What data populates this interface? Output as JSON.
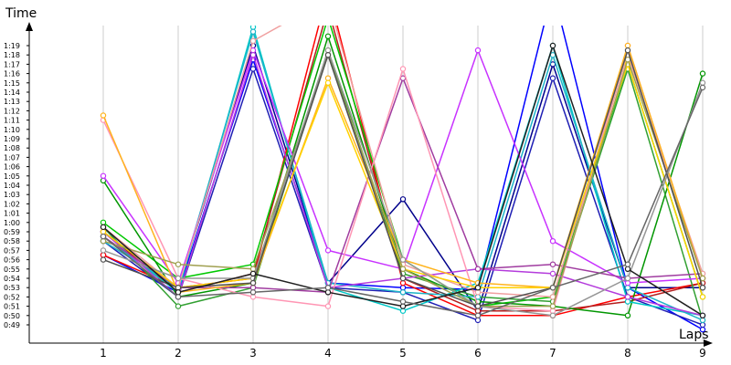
{
  "chart_data": {
    "type": "line",
    "title": "",
    "xlabel": "Laps",
    "ylabel": "Time",
    "x": [
      1,
      2,
      3,
      4,
      5,
      6,
      7,
      8,
      9
    ],
    "ylim": [
      "0:48",
      "1:21"
    ],
    "y_ticks": [
      "0:49",
      "0:50",
      "0:51",
      "0:52",
      "0:53",
      "0:54",
      "0:55",
      "0:56",
      "0:57",
      "0:58",
      "0:59",
      "1:00",
      "1:01",
      "1:02",
      "1:03",
      "1:04",
      "1:05",
      "1:06",
      "1:07",
      "1:08",
      "1:09",
      "1:10",
      "1:11",
      "1:12",
      "1:13",
      "1:14",
      "1:15",
      "1:16",
      "1:17",
      "1:18",
      "1:19"
    ],
    "grid": "vertical",
    "legend": "none",
    "series": [
      {
        "color": "#0000ff",
        "values": [
          "0:56.5",
          "0:52.5",
          "1:17.5",
          "0:53.5",
          "0:53",
          "0:52.8",
          "1:25",
          "0:53",
          "0:48.5"
        ]
      },
      {
        "color": "#1e1eb4",
        "values": [
          "0:58",
          "0:52",
          "1:16.5",
          "0:53",
          "0:52.5",
          "0:49.5",
          "1:15.5",
          "0:52",
          "0:49"
        ]
      },
      {
        "color": "#00008b",
        "values": [
          "0:59",
          "0:53",
          "1:19",
          "0:53.5",
          "1:02.5",
          "0:50.5",
          "1:17",
          "0:53",
          "0:53"
        ]
      },
      {
        "color": "#ff0000",
        "values": [
          "0:56.5",
          "0:53",
          "0:54",
          "1:25",
          "0:53.5",
          "0:50",
          "0:50",
          "0:52",
          "0:53.5"
        ]
      },
      {
        "color": "#b41e1e",
        "values": [
          "0:59",
          "0:52.5",
          "0:54.5",
          "1:23",
          "0:54",
          "0:50.5",
          "0:50.5",
          "0:51.5",
          "0:53.5"
        ]
      },
      {
        "color": "#00c800",
        "values": [
          "1:00",
          "0:54",
          "0:55.5",
          "1:22",
          "0:56",
          "0:51",
          "0:52",
          "1:17",
          "0:52"
        ]
      },
      {
        "color": "#009600",
        "values": [
          "1:04.5",
          "0:52",
          "0:53.5",
          "1:20",
          "0:55",
          "0:51.5",
          "0:51",
          "0:50",
          "1:16"
        ]
      },
      {
        "color": "#32a032",
        "values": [
          "0:59.5",
          "0:51",
          "0:53",
          "1:18.5",
          "0:54.5",
          "0:52",
          "0:51.5",
          "1:16.5",
          "0:49.5"
        ]
      },
      {
        "color": "#00c8c8",
        "values": [
          "0:58.5",
          "0:52.5",
          "1:21",
          "0:53",
          "0:50.5",
          "0:53.5",
          "1:19",
          "0:51.5",
          "0:50"
        ]
      },
      {
        "color": "#1eb4c8",
        "values": [
          "0:58",
          "0:53",
          "1:20.5",
          "0:53.5",
          "0:52.5",
          "0:52",
          "1:18",
          "0:53",
          "0:49.5"
        ]
      },
      {
        "color": "#c832ff",
        "values": [
          "1:05",
          "0:53.5",
          "1:18.5",
          "0:57",
          "0:55",
          "1:18.5",
          "0:58",
          "0:53.5",
          "0:54"
        ]
      },
      {
        "color": "#b43cdc",
        "values": [
          "0:59",
          "0:52",
          "1:18",
          "0:53",
          "0:54",
          "0:55",
          "0:54.5",
          "0:52",
          "0:50"
        ]
      },
      {
        "color": "#a03ca0",
        "values": [
          "0:58.5",
          "0:53",
          "0:53",
          "0:52.5",
          "1:15.5",
          "0:55",
          "0:55.5",
          "0:54",
          "0:54.5"
        ]
      },
      {
        "color": "#ff96b4",
        "values": [
          "1:11",
          "0:54",
          "0:52",
          "0:51",
          "1:16.5",
          "0:51",
          "0:50.5",
          "1:19",
          "0:54"
        ]
      },
      {
        "color": "#f0a0a0",
        "values": [
          "0:59.5",
          "0:53",
          "1:19.5",
          "1:24",
          "0:55.5",
          "0:52.5",
          "0:52",
          "1:18",
          "0:54.5"
        ]
      },
      {
        "color": "#ffb41e",
        "values": [
          "1:11.5",
          "0:52.5",
          "0:53.5",
          "1:15.5",
          "0:56",
          "0:53.5",
          "0:53",
          "1:19",
          "0:54"
        ]
      },
      {
        "color": "#ffd200",
        "values": [
          "0:59",
          "0:53",
          "0:54",
          "1:15",
          "0:55",
          "0:53",
          "0:53",
          "1:17",
          "0:52"
        ]
      },
      {
        "color": "#a0a050",
        "values": [
          "0:58",
          "0:55.5",
          "0:55",
          "1:18",
          "0:55",
          "0:51",
          "0:51",
          "1:17.5",
          "0:54"
        ]
      },
      {
        "color": "#969696",
        "values": [
          "0:57",
          "0:54",
          "0:54",
          "1:18.5",
          "0:56",
          "0:51",
          "0:50",
          "0:54",
          "1:15"
        ]
      },
      {
        "color": "#505050",
        "values": [
          "0:56",
          "0:53",
          "0:53.5",
          "1:18",
          "0:54",
          "0:51",
          "0:53",
          "1:18.5",
          "0:53"
        ]
      },
      {
        "color": "#202020",
        "values": [
          "0:59.5",
          "0:52.5",
          "0:54.5",
          "0:52.5",
          "0:51",
          "0:53",
          "1:19",
          "0:55",
          "0:50"
        ]
      },
      {
        "color": "#666666",
        "values": [
          "0:58.5",
          "0:52",
          "0:52.5",
          "0:53",
          "0:51.5",
          "0:50",
          "0:53",
          "0:55.5",
          "1:14.5"
        ]
      }
    ]
  }
}
